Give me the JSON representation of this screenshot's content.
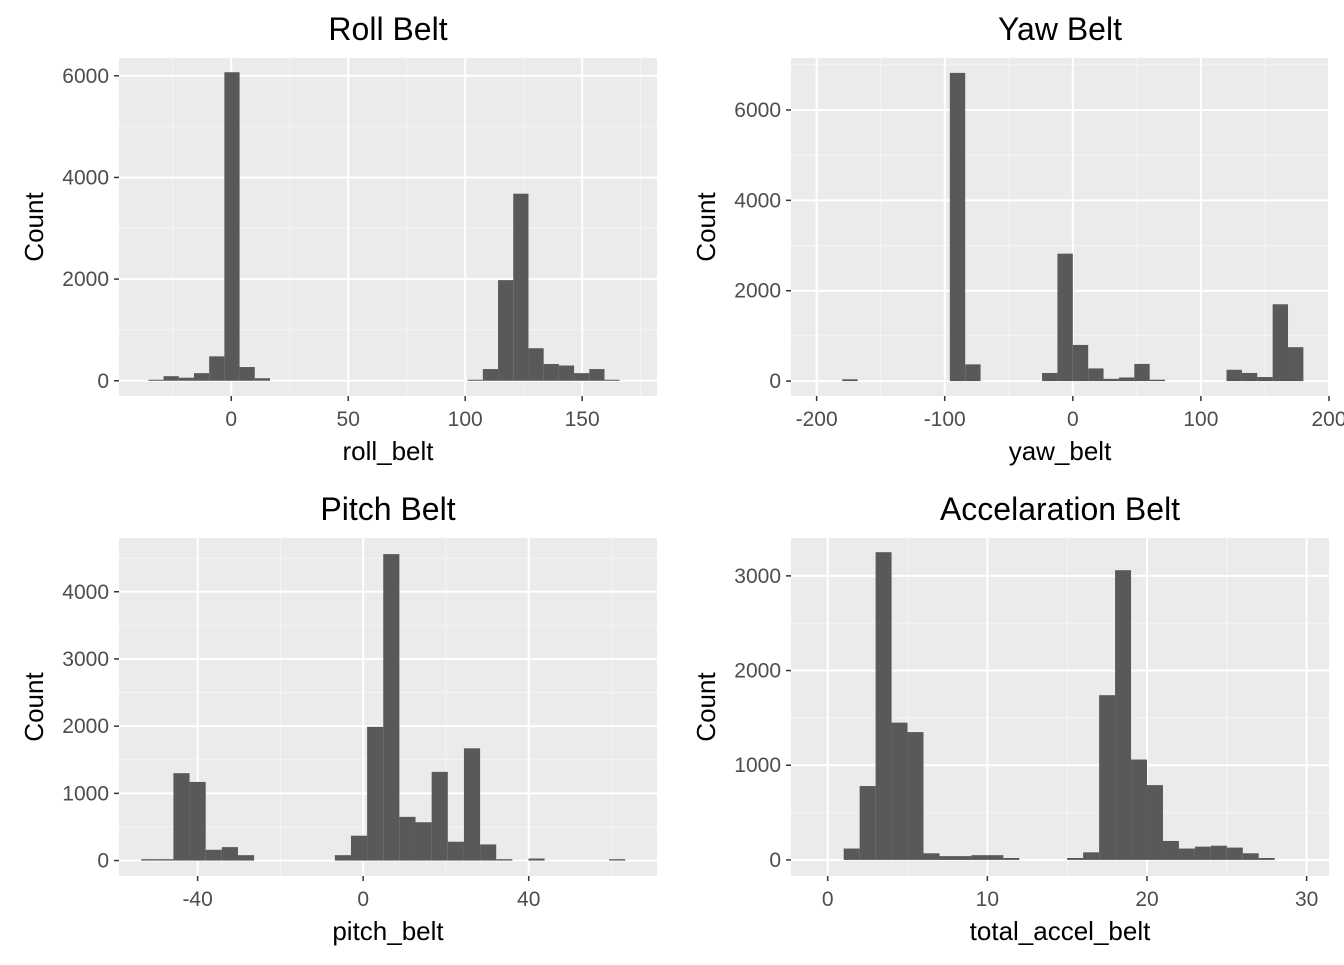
{
  "chart_data": [
    {
      "type": "bar",
      "title": "Roll Belt",
      "xlabel": "roll_belt",
      "ylabel": "Count",
      "xlim": [
        -48,
        182
      ],
      "ylim": [
        -300,
        6350
      ],
      "xticks": [
        0,
        50,
        100,
        150
      ],
      "yticks": [
        0,
        2000,
        4000,
        6000
      ],
      "binwidth": 6.5,
      "bars": [
        {
          "x": -32.2,
          "y": 20
        },
        {
          "x": -25.7,
          "y": 90
        },
        {
          "x": -19.2,
          "y": 60
        },
        {
          "x": -12.7,
          "y": 150
        },
        {
          "x": -6.2,
          "y": 480
        },
        {
          "x": 0.3,
          "y": 6070
        },
        {
          "x": 6.8,
          "y": 270
        },
        {
          "x": 13.3,
          "y": 50
        },
        {
          "x": 104.3,
          "y": 20
        },
        {
          "x": 110.8,
          "y": 230
        },
        {
          "x": 117.3,
          "y": 1980
        },
        {
          "x": 123.8,
          "y": 3680
        },
        {
          "x": 130.3,
          "y": 640
        },
        {
          "x": 136.8,
          "y": 330
        },
        {
          "x": 143.3,
          "y": 300
        },
        {
          "x": 149.8,
          "y": 150
        },
        {
          "x": 156.3,
          "y": 230
        },
        {
          "x": 162.8,
          "y": 20
        }
      ]
    },
    {
      "type": "bar",
      "title": "Yaw Belt",
      "xlabel": "yaw_belt",
      "ylabel": "Count",
      "xlim": [
        -220,
        200
      ],
      "ylim": [
        -330,
        7150
      ],
      "xticks": [
        -200,
        -100,
        0,
        100,
        200
      ],
      "yticks": [
        0,
        2000,
        4000,
        6000
      ],
      "binwidth": 12,
      "bars": [
        {
          "x": -174,
          "y": 40
        },
        {
          "x": -90,
          "y": 6820
        },
        {
          "x": -78,
          "y": 370
        },
        {
          "x": -18,
          "y": 180
        },
        {
          "x": -6,
          "y": 2820
        },
        {
          "x": 6,
          "y": 800
        },
        {
          "x": 18,
          "y": 280
        },
        {
          "x": 30,
          "y": 50
        },
        {
          "x": 42,
          "y": 80
        },
        {
          "x": 54,
          "y": 380
        },
        {
          "x": 66,
          "y": 30
        },
        {
          "x": 126,
          "y": 250
        },
        {
          "x": 138,
          "y": 180
        },
        {
          "x": 150,
          "y": 90
        },
        {
          "x": 162,
          "y": 1700
        },
        {
          "x": 174,
          "y": 750
        }
      ]
    },
    {
      "type": "bar",
      "title": "Pitch Belt",
      "xlabel": "pitch_belt",
      "ylabel": "Count",
      "xlim": [
        -59,
        71
      ],
      "ylim": [
        -230,
        4800
      ],
      "xticks": [
        -40,
        0,
        40
      ],
      "yticks": [
        0,
        1000,
        2000,
        3000,
        4000
      ],
      "binwidth": 3.9,
      "bars": [
        {
          "x": -51.7,
          "y": 20
        },
        {
          "x": -47.8,
          "y": 20
        },
        {
          "x": -43.9,
          "y": 1300
        },
        {
          "x": -40.0,
          "y": 1170
        },
        {
          "x": -36.1,
          "y": 160
        },
        {
          "x": -32.2,
          "y": 200
        },
        {
          "x": -28.3,
          "y": 80
        },
        {
          "x": -4.9,
          "y": 80
        },
        {
          "x": -1.0,
          "y": 370
        },
        {
          "x": 2.9,
          "y": 1990
        },
        {
          "x": 6.8,
          "y": 4560
        },
        {
          "x": 10.7,
          "y": 650
        },
        {
          "x": 14.6,
          "y": 570
        },
        {
          "x": 18.5,
          "y": 1320
        },
        {
          "x": 22.4,
          "y": 280
        },
        {
          "x": 26.3,
          "y": 1670
        },
        {
          "x": 30.2,
          "y": 240
        },
        {
          "x": 34.1,
          "y": 20
        },
        {
          "x": 41.9,
          "y": 30
        },
        {
          "x": 61.4,
          "y": 20
        }
      ]
    },
    {
      "type": "bar",
      "title": "Accelaration Belt",
      "xlabel": "total_accel_belt",
      "ylabel": "Count",
      "xlim": [
        -2.3,
        31.4
      ],
      "ylim": [
        -170,
        3400
      ],
      "xticks": [
        0,
        10,
        20,
        30
      ],
      "yticks": [
        0,
        1000,
        2000,
        3000
      ],
      "binwidth": 1.0,
      "bars": [
        {
          "x": 1.5,
          "y": 120
        },
        {
          "x": 2.5,
          "y": 780
        },
        {
          "x": 3.5,
          "y": 3250
        },
        {
          "x": 4.5,
          "y": 1450
        },
        {
          "x": 5.5,
          "y": 1350
        },
        {
          "x": 6.5,
          "y": 70
        },
        {
          "x": 7.5,
          "y": 40
        },
        {
          "x": 8.5,
          "y": 40
        },
        {
          "x": 9.5,
          "y": 50
        },
        {
          "x": 10.5,
          "y": 50
        },
        {
          "x": 11.5,
          "y": 20
        },
        {
          "x": 15.5,
          "y": 20
        },
        {
          "x": 16.5,
          "y": 80
        },
        {
          "x": 17.5,
          "y": 1740
        },
        {
          "x": 18.5,
          "y": 3060
        },
        {
          "x": 19.5,
          "y": 1060
        },
        {
          "x": 20.5,
          "y": 790
        },
        {
          "x": 21.5,
          "y": 200
        },
        {
          "x": 22.5,
          "y": 120
        },
        {
          "x": 23.5,
          "y": 140
        },
        {
          "x": 24.5,
          "y": 150
        },
        {
          "x": 25.5,
          "y": 130
        },
        {
          "x": 26.5,
          "y": 70
        },
        {
          "x": 27.5,
          "y": 20
        }
      ]
    }
  ]
}
